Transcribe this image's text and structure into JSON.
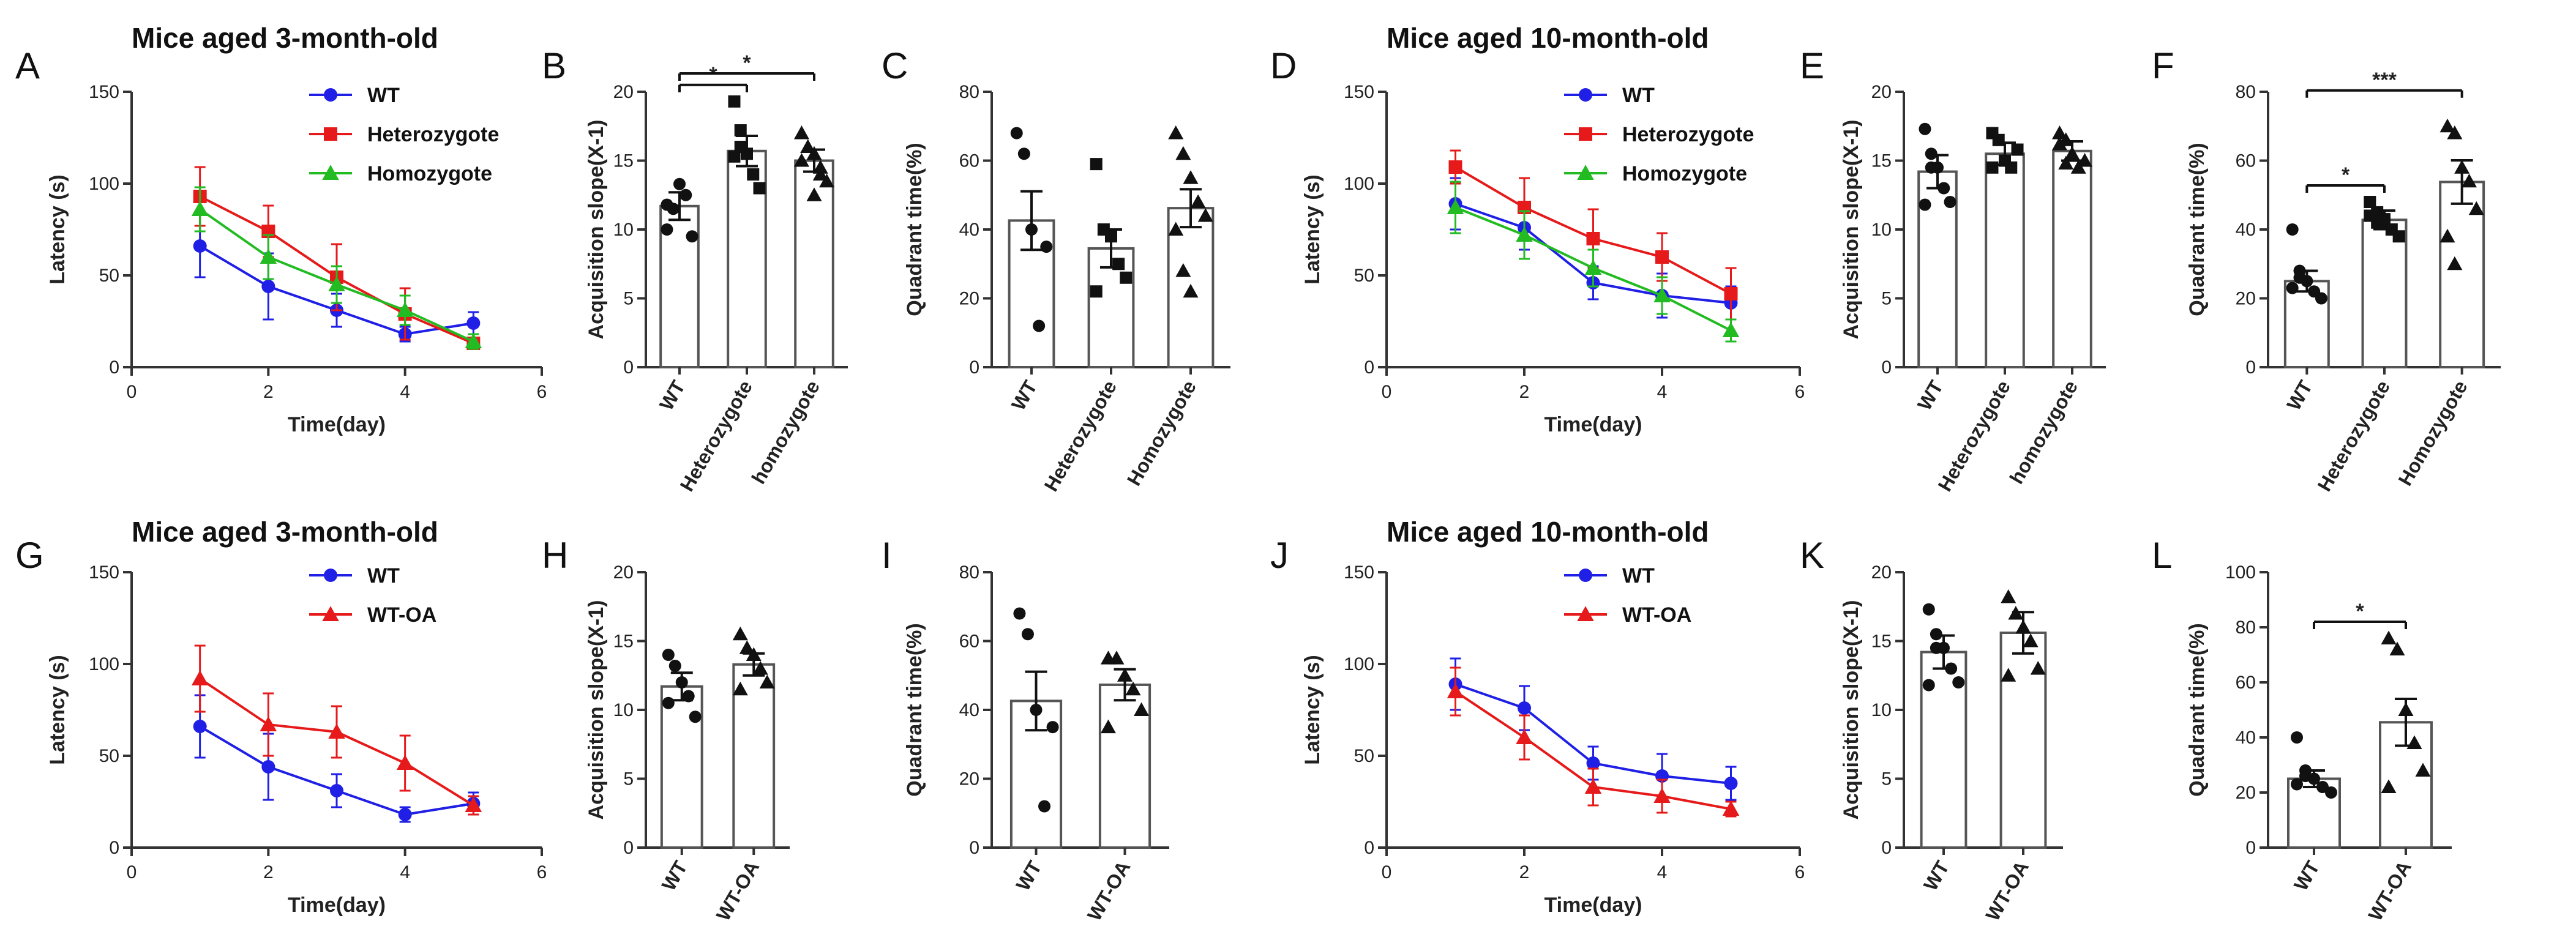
{
  "figure": {
    "row1_left_title": "Mice aged 3-month-old",
    "row1_right_title": "Mice aged 10-month-old",
    "row2_left_title": "Mice aged 3-month-old",
    "row2_right_title": "Mice aged 10-month-old"
  },
  "colors": {
    "WT": "#1f1fe6",
    "Heterozygote": "#e61a1a",
    "Homozygote": "#22bb22",
    "WT-OA": "#e61a1a",
    "axis": "#333333"
  },
  "chart_data": [
    {
      "id": "A",
      "letter": "A",
      "type": "line",
      "xlabel": "Time(day)",
      "ylabel": "Latency (s)",
      "xlim": [
        0,
        6
      ],
      "ylim": [
        0,
        150
      ],
      "xticks": [
        0,
        2,
        4,
        6
      ],
      "yticks": [
        0,
        50,
        100,
        150
      ],
      "x": [
        1,
        2,
        3,
        4,
        5
      ],
      "series": [
        {
          "name": "WT",
          "marker": "circle",
          "values": [
            66,
            44,
            31,
            18,
            24
          ],
          "err": [
            17,
            18,
            9,
            4,
            6
          ]
        },
        {
          "name": "Heterozygote",
          "marker": "square",
          "values": [
            93,
            74,
            49,
            29,
            13
          ],
          "err": [
            16,
            14,
            18,
            14,
            3
          ]
        },
        {
          "name": "Homozygote",
          "marker": "triangle",
          "values": [
            86,
            60,
            45,
            31,
            14
          ],
          "err": [
            12,
            12,
            10,
            8,
            4
          ]
        }
      ]
    },
    {
      "id": "B",
      "letter": "B",
      "type": "bar",
      "ylabel": "Acquisition slope(X-1)",
      "ylim": [
        0,
        20
      ],
      "yticks": [
        0,
        5,
        10,
        15,
        20
      ],
      "categories": [
        "WT",
        "Heterozygote",
        "homozygote"
      ],
      "means": [
        11.7,
        15.7,
        15.0
      ],
      "sem": [
        1.0,
        1.1,
        0.8
      ],
      "markers": [
        "circle",
        "square",
        "triangle"
      ],
      "points": [
        [
          10,
          11.5,
          13.3,
          12.5,
          9.5,
          11.8
        ],
        [
          19.3,
          16,
          15.5,
          14,
          13,
          15.3,
          17.2
        ],
        [
          17,
          16,
          15.5,
          14.5,
          13.5,
          15,
          16,
          12.5,
          14
        ]
      ],
      "sig": [
        {
          "from": 0,
          "to": 1,
          "label": "*"
        },
        {
          "from": 0,
          "to": 2,
          "label": "*"
        }
      ]
    },
    {
      "id": "C",
      "letter": "C",
      "type": "bar",
      "ylabel": "Quadrant time(%)",
      "ylim": [
        0,
        80
      ],
      "yticks": [
        0,
        20,
        40,
        60,
        80
      ],
      "categories": [
        "WT",
        "Heterozygote",
        "Homozygote"
      ],
      "means": [
        42.6,
        34.5,
        46.2
      ],
      "sem": [
        8.5,
        5.5,
        5.5
      ],
      "markers": [
        "circle",
        "square",
        "triangle"
      ],
      "points": [
        [
          68,
          62,
          40,
          12,
          35
        ],
        [
          59,
          40,
          38,
          30,
          26,
          22
        ],
        [
          68,
          62,
          55,
          48,
          44,
          40,
          28,
          22
        ]
      ],
      "sig": []
    },
    {
      "id": "D",
      "letter": "D",
      "type": "line",
      "xlabel": "Time(day)",
      "ylabel": "Latency (s)",
      "xlim": [
        0,
        6
      ],
      "ylim": [
        0,
        150
      ],
      "xticks": [
        0,
        2,
        4,
        6
      ],
      "yticks": [
        0,
        50,
        100,
        150
      ],
      "x": [
        1,
        2,
        3,
        4,
        5
      ],
      "series": [
        {
          "name": "WT",
          "marker": "circle",
          "values": [
            89,
            76,
            46,
            39,
            35
          ],
          "err": [
            14,
            12,
            9,
            12,
            9
          ]
        },
        {
          "name": "Heterozygote",
          "marker": "square",
          "values": [
            109,
            87,
            70,
            60,
            40
          ],
          "err": [
            9,
            16,
            16,
            13,
            14
          ]
        },
        {
          "name": "Homozygote",
          "marker": "triangle",
          "values": [
            87,
            72,
            54,
            39,
            20
          ],
          "err": [
            14,
            13,
            10,
            10,
            6
          ]
        }
      ]
    },
    {
      "id": "E",
      "letter": "E",
      "type": "bar",
      "ylabel": "Acquisition slope(X-1)",
      "ylim": [
        0,
        20
      ],
      "yticks": [
        0,
        5,
        10,
        15,
        20
      ],
      "categories": [
        "WT",
        "Heterozygote",
        "homozygote"
      ],
      "means": [
        14.2,
        15.5,
        15.7
      ],
      "sem": [
        1.2,
        0.8,
        0.7
      ],
      "markers": [
        "circle",
        "square",
        "triangle"
      ],
      "points": [
        [
          17.3,
          15.5,
          14.5,
          13,
          12,
          11.8,
          14.5
        ],
        [
          17,
          16.5,
          15,
          14.5,
          15.8,
          14.5
        ],
        [
          17,
          16.5,
          15.5,
          14.5,
          15,
          16.2,
          14.8
        ]
      ],
      "sig": []
    },
    {
      "id": "F",
      "letter": "F",
      "type": "bar",
      "ylabel": "Quadrant time(%)",
      "ylim": [
        0,
        80
      ],
      "yticks": [
        0,
        20,
        40,
        60,
        80
      ],
      "categories": [
        "WT",
        "Heterozygote",
        "Homozygote"
      ],
      "means": [
        25.0,
        42.8,
        53.8
      ],
      "sem": [
        3.0,
        2.7,
        6.3
      ],
      "markers": [
        "circle",
        "square",
        "triangle"
      ],
      "points": [
        [
          40,
          28,
          25,
          22,
          20,
          23,
          26
        ],
        [
          48,
          45,
          43,
          40,
          38,
          44,
          42
        ],
        [
          70,
          68,
          58,
          54,
          46,
          38,
          30
        ]
      ],
      "sig": [
        {
          "from": 0,
          "to": 1,
          "label": "*"
        },
        {
          "from": 0,
          "to": 2,
          "label": "***"
        }
      ]
    },
    {
      "id": "G",
      "letter": "G",
      "type": "line",
      "xlabel": "Time(day)",
      "ylabel": "Latency (s)",
      "xlim": [
        0,
        6
      ],
      "ylim": [
        0,
        150
      ],
      "xticks": [
        0,
        2,
        4,
        6
      ],
      "yticks": [
        0,
        50,
        100,
        150
      ],
      "x": [
        1,
        2,
        3,
        4,
        5
      ],
      "series": [
        {
          "name": "WT",
          "marker": "circle",
          "values": [
            66,
            44,
            31,
            18,
            24
          ],
          "err": [
            17,
            18,
            9,
            4,
            6
          ]
        },
        {
          "name": "WT-OA",
          "marker": "triangle",
          "values": [
            92,
            67,
            63,
            46,
            23
          ],
          "err": [
            18,
            17,
            14,
            15,
            5
          ]
        }
      ]
    },
    {
      "id": "H",
      "letter": "H",
      "type": "bar",
      "ylabel": "Acquisition slope(X-1)",
      "ylim": [
        0,
        20
      ],
      "yticks": [
        0,
        5,
        10,
        15,
        20
      ],
      "categories": [
        "WT",
        "WT-OA"
      ],
      "means": [
        11.7,
        13.3
      ],
      "sem": [
        1.0,
        0.8
      ],
      "markers": [
        "circle",
        "triangle"
      ],
      "points": [
        [
          14,
          13.2,
          12,
          11,
          9.5,
          10.5
        ],
        [
          15.5,
          14.5,
          14,
          13,
          12,
          11.5
        ]
      ],
      "sig": []
    },
    {
      "id": "I",
      "letter": "I",
      "type": "bar",
      "ylabel": "Quadrant time(%)",
      "ylim": [
        0,
        80
      ],
      "yticks": [
        0,
        20,
        40,
        60,
        80
      ],
      "categories": [
        "WT",
        "WT-OA"
      ],
      "means": [
        42.6,
        47.3
      ],
      "sem": [
        8.5,
        4.5
      ],
      "markers": [
        "circle",
        "triangle"
      ],
      "points": [
        [
          68,
          62,
          40,
          12,
          35
        ],
        [
          55,
          55,
          50,
          46,
          40,
          35
        ]
      ],
      "sig": []
    },
    {
      "id": "J",
      "letter": "J",
      "type": "line",
      "xlabel": "Time(day)",
      "ylabel": "Latency (s)",
      "xlim": [
        0,
        6
      ],
      "ylim": [
        0,
        150
      ],
      "xticks": [
        0,
        2,
        4,
        6
      ],
      "yticks": [
        0,
        50,
        100,
        150
      ],
      "x": [
        1,
        2,
        3,
        4,
        5
      ],
      "series": [
        {
          "name": "WT",
          "marker": "circle",
          "values": [
            89,
            76,
            46,
            39,
            35
          ],
          "err": [
            14,
            12,
            9,
            12,
            9
          ]
        },
        {
          "name": "WT-OA",
          "marker": "triangle",
          "values": [
            85,
            60,
            33,
            28,
            21
          ],
          "err": [
            13,
            12,
            10,
            9,
            4
          ]
        }
      ]
    },
    {
      "id": "K",
      "letter": "K",
      "type": "bar",
      "ylabel": "Acquisition slope(X-1)",
      "ylim": [
        0,
        20
      ],
      "yticks": [
        0,
        5,
        10,
        15,
        20
      ],
      "categories": [
        "WT",
        "WT-OA"
      ],
      "means": [
        14.2,
        15.6
      ],
      "sem": [
        1.2,
        1.5
      ],
      "markers": [
        "circle",
        "triangle"
      ],
      "points": [
        [
          17.3,
          15.5,
          14.5,
          13,
          12,
          11.8,
          14.5
        ],
        [
          18.2,
          17,
          16,
          15,
          13,
          12.5
        ]
      ],
      "sig": []
    },
    {
      "id": "L",
      "letter": "L",
      "type": "bar",
      "ylabel": "Quadrant time(%)",
      "ylim": [
        0,
        100
      ],
      "yticks": [
        0,
        20,
        40,
        60,
        80,
        100
      ],
      "categories": [
        "WT",
        "WT-OA"
      ],
      "means": [
        25.0,
        45.5
      ],
      "sem": [
        3.0,
        8.5
      ],
      "markers": [
        "circle",
        "triangle"
      ],
      "points": [
        [
          40,
          28,
          25,
          22,
          20,
          23,
          26
        ],
        [
          76,
          72,
          50,
          38,
          28,
          22
        ]
      ],
      "sig": [
        {
          "from": 0,
          "to": 1,
          "label": "*"
        }
      ]
    }
  ]
}
